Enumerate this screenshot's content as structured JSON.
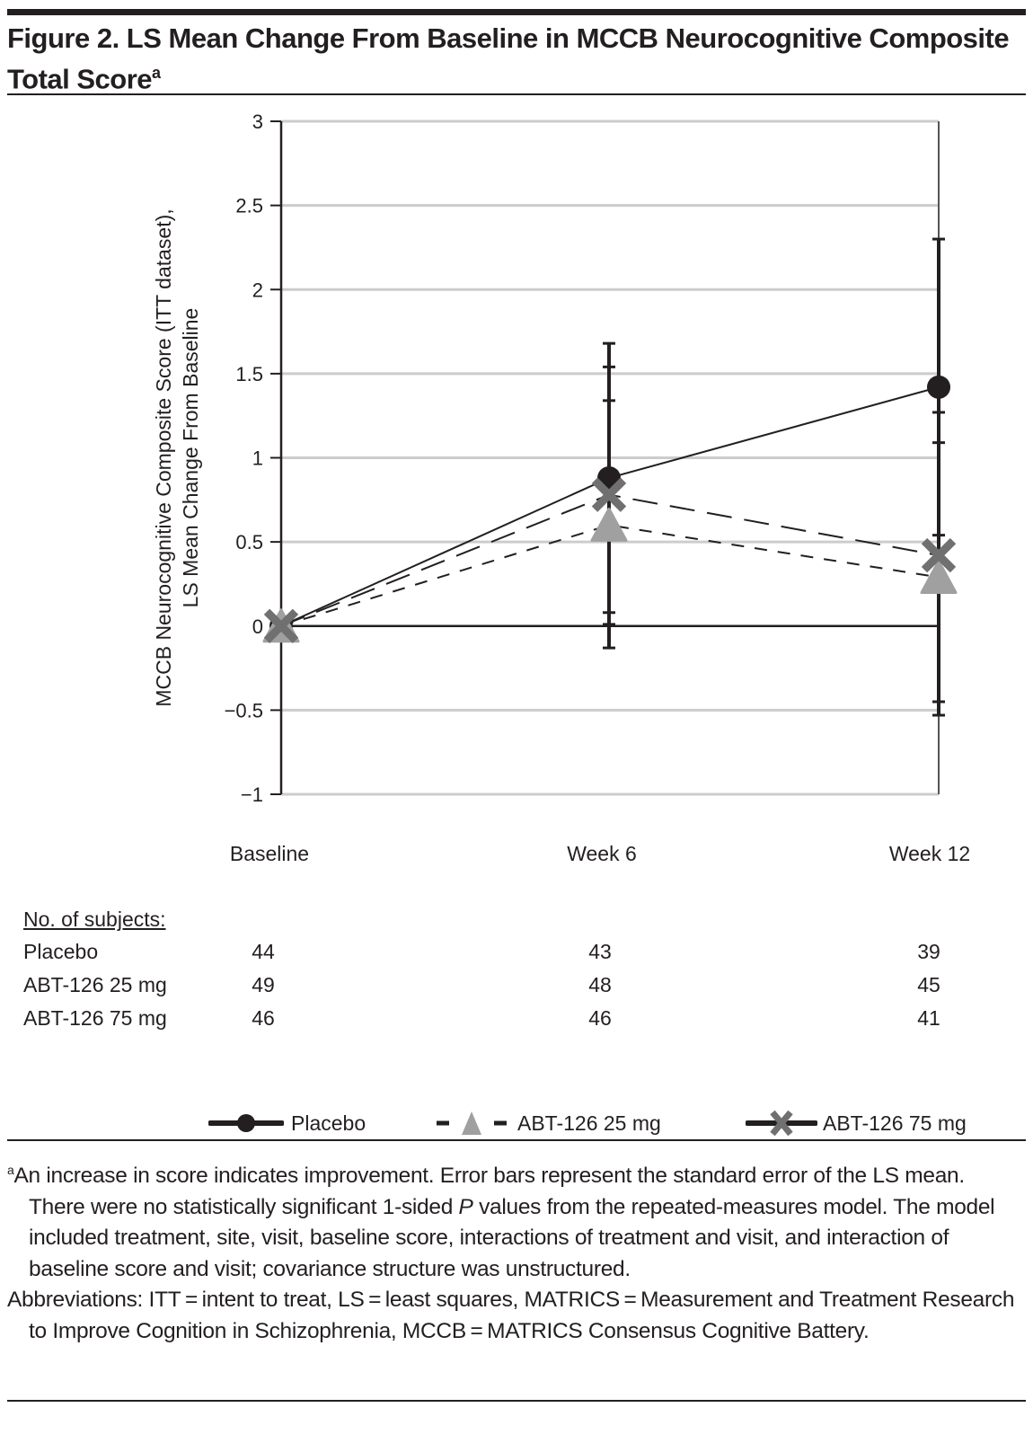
{
  "figure": {
    "title_main": "Figure 2. LS Mean Change From Baseline in MCCB Neurocognitive Composite Total Score",
    "title_sup": "a"
  },
  "chart_data": {
    "type": "line",
    "title": "LS Mean Change From Baseline in MCCB Neurocognitive Composite Total Score",
    "xlabel": "",
    "ylabel": [
      "MCCB Neurocognitive Composite Score (ITT dataset),",
      "LS Mean Change From Baseline"
    ],
    "categories": [
      "Baseline",
      "Week 6",
      "Week 12"
    ],
    "ylim": [
      -1,
      3
    ],
    "yticks": [
      3,
      2.5,
      2,
      1.5,
      1,
      0.5,
      0,
      -0.5,
      -1
    ],
    "ytick_labels": [
      "3",
      "2.5",
      "2",
      "1.5",
      "1",
      "0.5",
      "0",
      "−0.5",
      "−1"
    ],
    "grid": true,
    "legend_position": "bottom",
    "series": [
      {
        "name": "Placebo",
        "values": [
          0,
          0.88,
          1.42
        ],
        "error_low": [
          0,
          0.08,
          0.54
        ],
        "error_high": [
          0,
          1.68,
          2.3
        ],
        "line": "solid",
        "marker": "circle",
        "color": "#231f20"
      },
      {
        "name": "ABT-126 25 mg",
        "values": [
          0,
          0.6,
          0.29
        ],
        "error_low": [
          0,
          -0.13,
          -0.53
        ],
        "error_high": [
          0,
          1.34,
          1.09
        ],
        "line": "short-dash",
        "marker": "triangle",
        "color": "#a0a0a0"
      },
      {
        "name": "ABT-126 75 mg",
        "values": [
          0,
          0.78,
          0.42
        ],
        "error_low": [
          0,
          0.01,
          -0.45
        ],
        "error_high": [
          0,
          1.54,
          1.27
        ],
        "line": "long-dash",
        "marker": "x",
        "color": "#707070"
      }
    ]
  },
  "subjects": {
    "header": "No. of  subjects:",
    "rows": [
      {
        "label": "Placebo",
        "values": [
          "44",
          "43",
          "39"
        ]
      },
      {
        "label": "ABT-126 25 mg",
        "values": [
          "49",
          "48",
          "45"
        ]
      },
      {
        "label": "ABT-126 75 mg",
        "values": [
          "46",
          "46",
          "41"
        ]
      }
    ]
  },
  "footnotes": {
    "note_marker": "a",
    "note_a_pre": "An increase in score indicates improvement. Error bars represent the standard error of the LS mean. There were no statistically significant 1-sided ",
    "note_a_italic": "P",
    "note_a_post": " values from the repeated-measures model. The model included treatment, site, visit, baseline score, interactions of treatment and visit, and interaction of baseline score and visit; covariance structure was unstructured.",
    "abbreviations": "Abbreviations: ITT = intent to treat, LS = least squares, MATRICS = Measurement and Treatment Research to Improve Cognition in Schizophrenia, MCCB = MATRICS Consensus Cognitive Battery."
  }
}
